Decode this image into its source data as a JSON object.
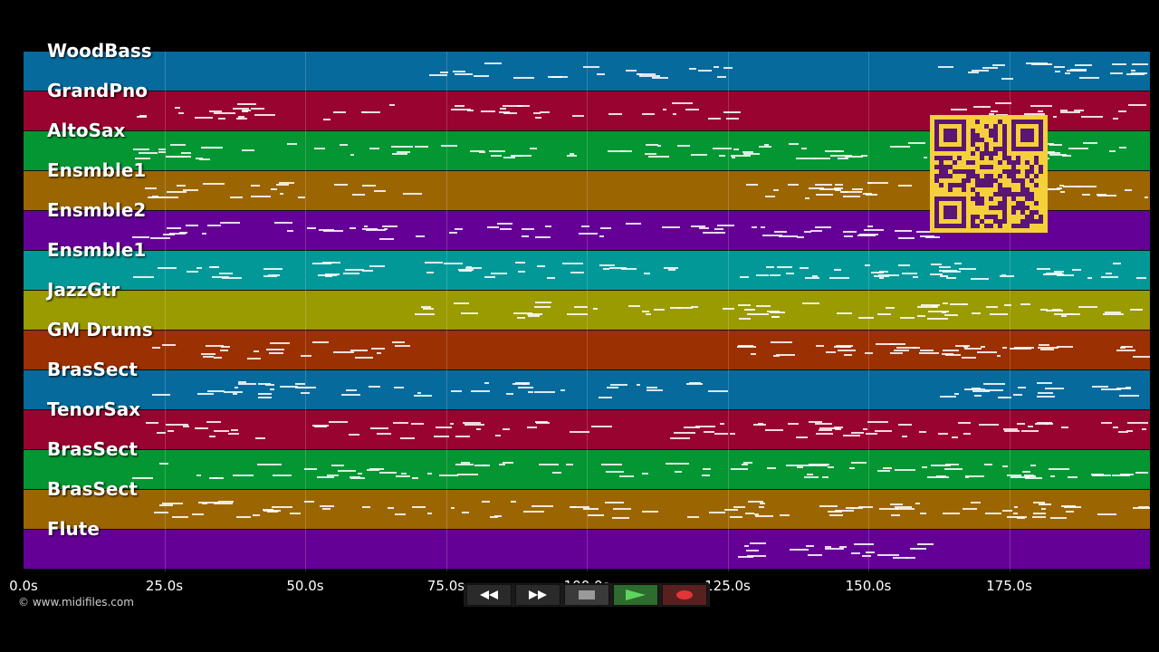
{
  "tracks": [
    {
      "name": "WoodBass",
      "color": "#066a9c"
    },
    {
      "name": "GrandPno",
      "color": "#99032f"
    },
    {
      "name": "AltoSax",
      "color": "#049632"
    },
    {
      "name": "Ensmble1",
      "color": "#9b6602"
    },
    {
      "name": "Ensmble2",
      "color": "#650097"
    },
    {
      "name": "Ensmble1",
      "color": "#039898"
    },
    {
      "name": "JazzGtr",
      "color": "#9a9a01"
    },
    {
      "name": "GM Drums",
      "color": "#9b3002"
    },
    {
      "name": "BrasSect",
      "color": "#066a9c"
    },
    {
      "name": "TenorSax",
      "color": "#99032f"
    },
    {
      "name": "BrasSect",
      "color": "#049632"
    },
    {
      "name": "BrasSect",
      "color": "#9b6602"
    },
    {
      "name": "Flute",
      "color": "#650097"
    }
  ],
  "timeline": {
    "ticks": [
      "0.0s",
      "25.0s",
      "50.0s",
      "75.0s",
      "100.0s",
      "125.0s",
      "150.0s",
      "175.0s"
    ]
  },
  "transport": {
    "rewind_icon": "rewind-icon",
    "forward_icon": "fast-forward-icon",
    "stop_icon": "stop-icon",
    "play_icon": "play-icon",
    "record_icon": "record-icon"
  },
  "copyright": "© www.midifiles.com",
  "overlay": {
    "qr_color": "#f5d03a",
    "qr_fg": "#5a1670"
  }
}
